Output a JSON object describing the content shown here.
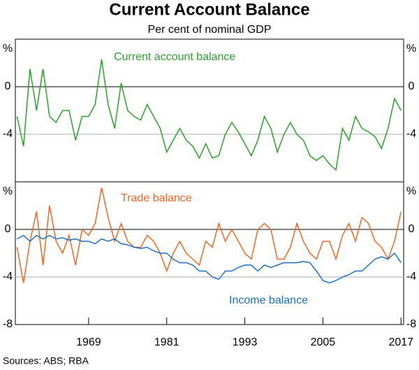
{
  "title": "Current Account Balance",
  "subtitle": "Per cent of nominal GDP",
  "footnote": "Sources: ABS; RBA",
  "chart_data": [
    {
      "type": "line",
      "x": [
        1958,
        1959,
        1960,
        1961,
        1962,
        1963,
        1964,
        1965,
        1966,
        1967,
        1968,
        1969,
        1970,
        1971,
        1972,
        1973,
        1974,
        1975,
        1976,
        1977,
        1978,
        1979,
        1980,
        1981,
        1982,
        1983,
        1984,
        1985,
        1986,
        1987,
        1988,
        1989,
        1990,
        1991,
        1992,
        1993,
        1994,
        1995,
        1996,
        1997,
        1998,
        1999,
        2000,
        2001,
        2002,
        2003,
        2004,
        2005,
        2006,
        2007,
        2008,
        2009,
        2010,
        2011,
        2012,
        2013,
        2014,
        2015,
        2016,
        2017
      ],
      "series": [
        {
          "name": "Current account balance",
          "color": "#2ca02c",
          "values": [
            -2.5,
            -5.0,
            1.5,
            -2.0,
            1.5,
            -2.5,
            -3.0,
            -2.0,
            -2.0,
            -4.5,
            -2.5,
            -2.5,
            -1.5,
            2.3,
            -1.5,
            -3.5,
            0.3,
            -2.0,
            -2.5,
            -2.8,
            -1.5,
            -2.5,
            -3.5,
            -5.5,
            -4.5,
            -3.5,
            -4.5,
            -5.0,
            -6.0,
            -4.8,
            -6.0,
            -5.8,
            -4.0,
            -3.0,
            -3.8,
            -4.8,
            -5.8,
            -4.5,
            -2.5,
            -3.5,
            -5.5,
            -4.0,
            -3.0,
            -4.0,
            -4.5,
            -5.8,
            -6.2,
            -5.8,
            -6.5,
            -7.0,
            -3.5,
            -4.5,
            -2.5,
            -3.5,
            -3.8,
            -4.2,
            -5.2,
            -3.5,
            -1.0,
            -2.0
          ]
        }
      ],
      "xlim": [
        1957.75,
        2017.4
      ],
      "ylim": [
        -8,
        4
      ],
      "yticks": [
        -4,
        0,
        {
          "value": 4,
          "label": "%"
        }
      ]
    },
    {
      "type": "line",
      "x": [
        1958,
        1959,
        1960,
        1961,
        1962,
        1963,
        1964,
        1965,
        1966,
        1967,
        1968,
        1969,
        1970,
        1971,
        1972,
        1973,
        1974,
        1975,
        1976,
        1977,
        1978,
        1979,
        1980,
        1981,
        1982,
        1983,
        1984,
        1985,
        1986,
        1987,
        1988,
        1989,
        1990,
        1991,
        1992,
        1993,
        1994,
        1995,
        1996,
        1997,
        1998,
        1999,
        2000,
        2001,
        2002,
        2003,
        2004,
        2005,
        2006,
        2007,
        2008,
        2009,
        2010,
        2011,
        2012,
        2013,
        2014,
        2015,
        2016,
        2017
      ],
      "series": [
        {
          "name": "Trade balance",
          "color": "#f26522",
          "values": [
            -1.5,
            -4.5,
            -1.0,
            1.5,
            -3.0,
            2.0,
            -1.0,
            -2.0,
            -0.5,
            -3.0,
            0.0,
            -0.5,
            0.5,
            3.5,
            1.0,
            -1.0,
            0.5,
            -1.0,
            -1.5,
            -1.5,
            -0.5,
            -1.0,
            -2.0,
            -3.5,
            -2.0,
            -1.0,
            -2.0,
            -2.5,
            -3.0,
            -1.0,
            -1.5,
            0.5,
            -1.0,
            0.0,
            -1.0,
            -2.0,
            -2.5,
            0.0,
            0.5,
            0.0,
            -2.5,
            -2.5,
            -1.5,
            0.5,
            -1.0,
            -2.0,
            -2.5,
            -1.0,
            -1.0,
            -2.5,
            -0.5,
            0.5,
            -1.0,
            1.0,
            0.5,
            -1.0,
            -1.5,
            -2.5,
            -1.0,
            1.5
          ]
        },
        {
          "name": "Income balance",
          "color": "#1f6fbf",
          "values": [
            -0.8,
            -0.5,
            -1.0,
            -0.5,
            -0.8,
            -0.5,
            -0.8,
            -0.7,
            -0.9,
            -0.8,
            -1.0,
            -1.0,
            -1.2,
            -0.8,
            -1.0,
            -0.8,
            -1.2,
            -1.3,
            -1.5,
            -1.6,
            -1.5,
            -1.8,
            -2.0,
            -2.0,
            -2.5,
            -2.8,
            -2.8,
            -3.0,
            -3.5,
            -3.5,
            -4.0,
            -4.2,
            -3.5,
            -3.5,
            -3.2,
            -3.0,
            -3.0,
            -3.5,
            -3.0,
            -3.2,
            -3.0,
            -2.8,
            -2.8,
            -2.8,
            -2.7,
            -2.8,
            -3.5,
            -4.3,
            -4.5,
            -4.3,
            -4.0,
            -3.8,
            -3.5,
            -3.5,
            -3.0,
            -2.5,
            -2.3,
            -2.5,
            -2.0,
            -2.8
          ]
        }
      ],
      "xlim": [
        1957.75,
        2017.4
      ],
      "xticks": [
        1969,
        1981,
        1993,
        2005,
        2017
      ],
      "ylim": [
        -8,
        4
      ],
      "yticks": [
        -8,
        -4,
        0,
        {
          "value": 4,
          "label": "%"
        }
      ]
    }
  ]
}
